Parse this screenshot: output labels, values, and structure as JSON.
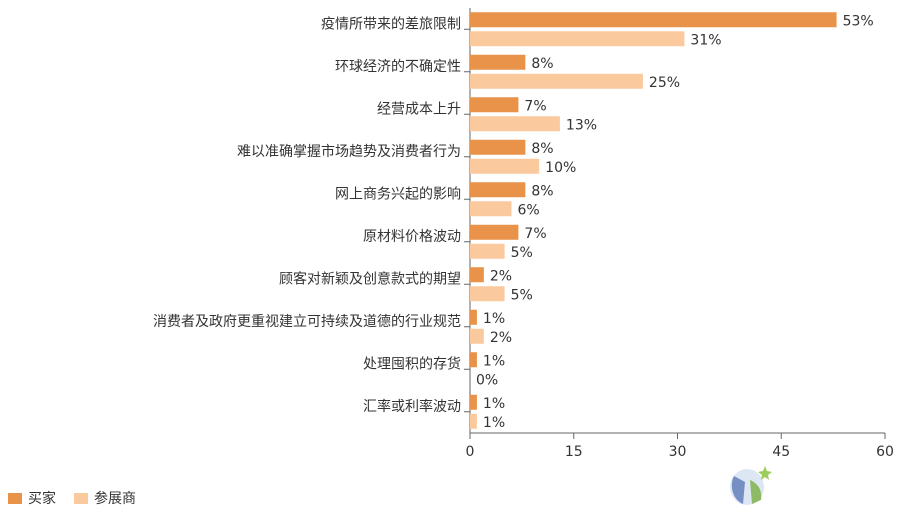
{
  "chart_data": {
    "type": "bar",
    "orientation": "horizontal",
    "categories": [
      "疫情所带来的差旅限制",
      "环球经济的不确定性",
      "经营成本上升",
      "难以准确掌握市场趋势及消费者行为",
      "网上商务兴起的影响",
      "原材料价格波动",
      "顾客对新颖及创意款式的期望",
      "消费者及政府更重视建立可持续及道德的行业规范",
      "处理囤积的存货",
      "汇率或利率波动"
    ],
    "series": [
      {
        "name": "买家",
        "color": "#e8924a",
        "values": [
          53,
          8,
          7,
          8,
          8,
          7,
          2,
          1,
          1,
          1
        ],
        "labels": [
          "53%",
          "8%",
          "7%",
          "8%",
          "8%",
          "7%",
          "2%",
          "1%",
          "1%",
          "1%"
        ]
      },
      {
        "name": "参展商",
        "color": "#fbc99e",
        "values": [
          31,
          25,
          13,
          10,
          6,
          5,
          5,
          2,
          0,
          1
        ],
        "labels": [
          "31%",
          "25%",
          "13%",
          "10%",
          "6%",
          "5%",
          "5%",
          "2%",
          "0%",
          "1%"
        ]
      }
    ],
    "xlim": [
      0,
      60
    ],
    "xticks": [
      "0",
      "15",
      "30",
      "45",
      "60"
    ],
    "grid": false,
    "legend_position": "bottom-left"
  }
}
